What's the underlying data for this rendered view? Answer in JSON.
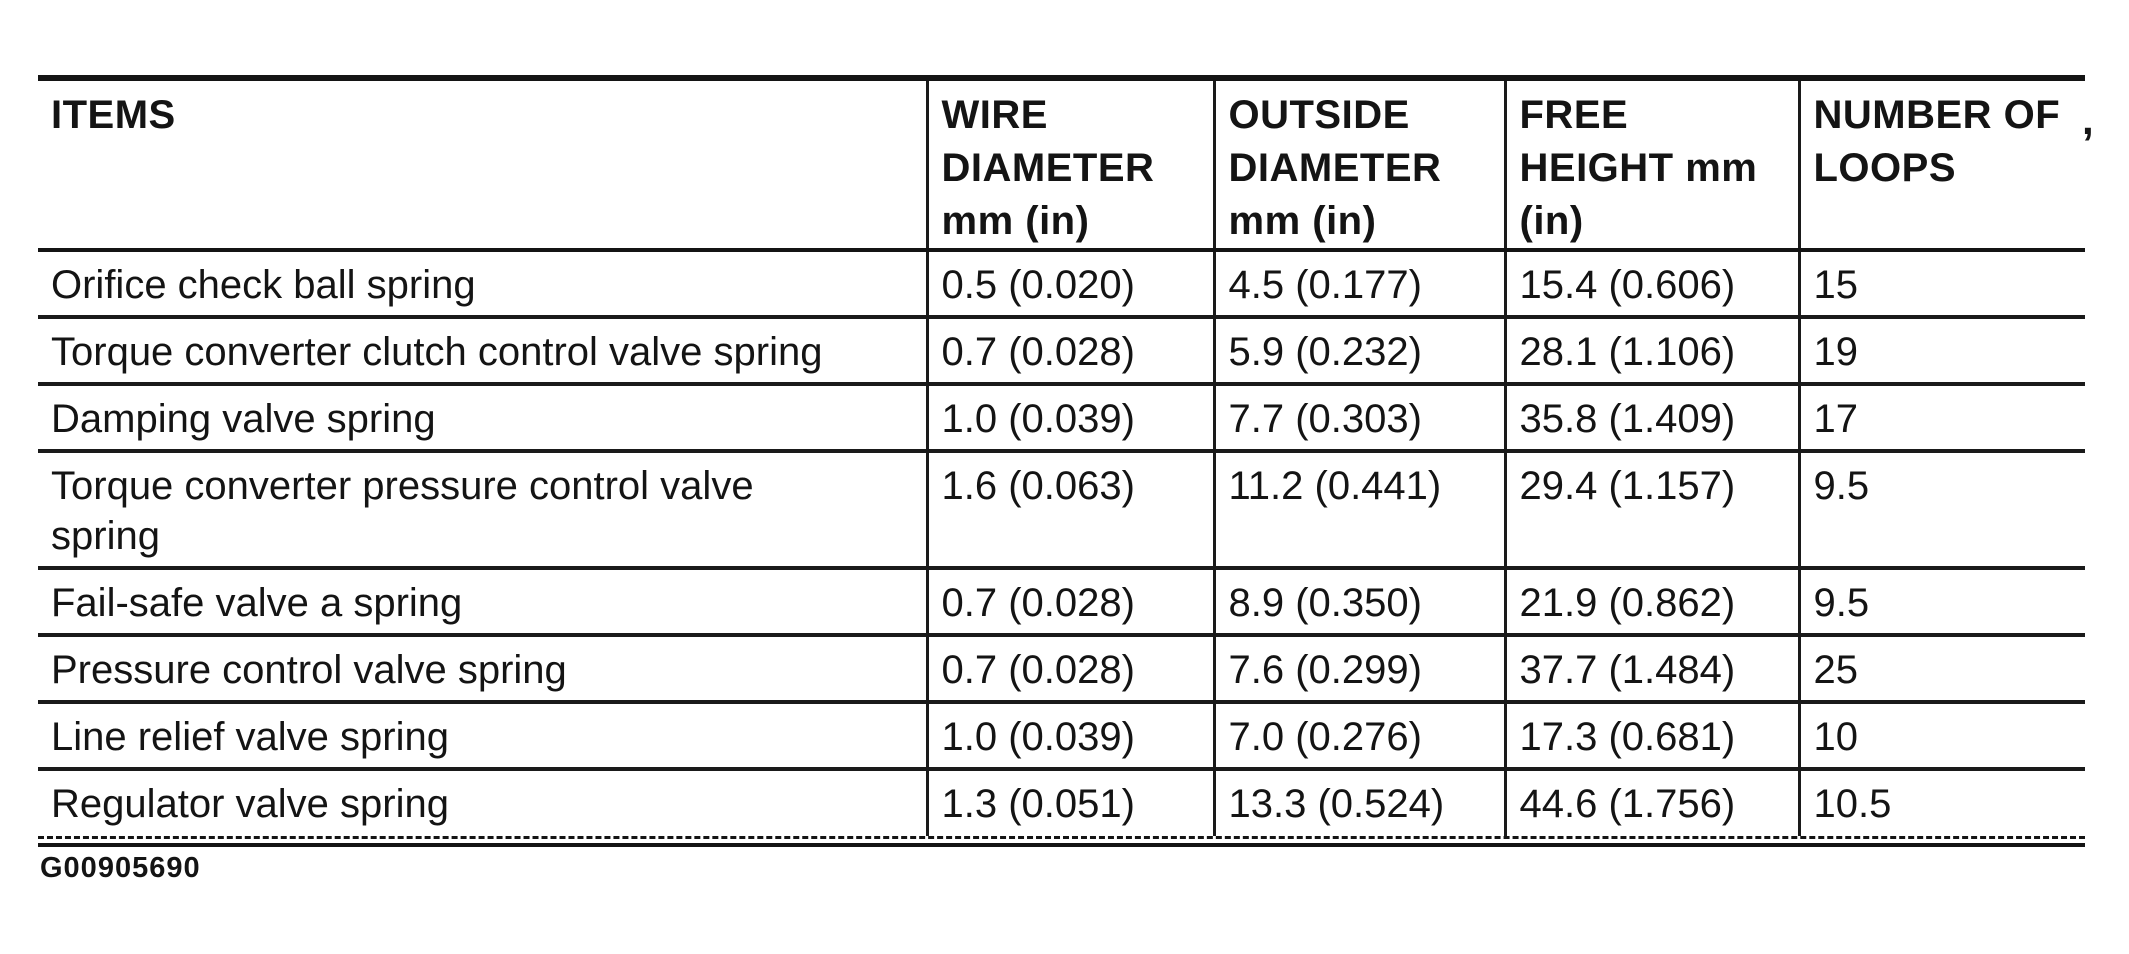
{
  "page": {
    "background": "#ffffff",
    "ink_color": "#141414",
    "figure_code": "G00905690",
    "artifact_mark": ","
  },
  "table": {
    "columns": [
      {
        "id": "items",
        "lines": [
          "ITEMS"
        ]
      },
      {
        "id": "wire_diameter",
        "lines": [
          "WIRE",
          "DIAMETER",
          "mm (in)"
        ]
      },
      {
        "id": "outside_diameter",
        "lines": [
          "OUTSIDE",
          "DIAMETER",
          "mm (in)"
        ]
      },
      {
        "id": "free_height",
        "lines": [
          "FREE",
          "HEIGHT mm",
          "(in)"
        ]
      },
      {
        "id": "number_of_loops",
        "lines": [
          "NUMBER OF",
          "LOOPS"
        ]
      }
    ],
    "rows": [
      {
        "item_lines": [
          "Orifice check ball spring"
        ],
        "wire_diameter": "0.5 (0.020)",
        "outside_diameter": "4.5 (0.177)",
        "free_height": "15.4 (0.606)",
        "number_of_loops": "15"
      },
      {
        "item_lines": [
          "Torque converter clutch control valve spring"
        ],
        "wire_diameter": "0.7 (0.028)",
        "outside_diameter": "5.9 (0.232)",
        "free_height": "28.1 (1.106)",
        "number_of_loops": "19"
      },
      {
        "item_lines": [
          "Damping valve spring"
        ],
        "wire_diameter": "1.0 (0.039)",
        "outside_diameter": "7.7 (0.303)",
        "free_height": "35.8 (1.409)",
        "number_of_loops": "17"
      },
      {
        "item_lines": [
          "Torque converter pressure control valve",
          "spring"
        ],
        "wire_diameter": "1.6 (0.063)",
        "outside_diameter": "11.2 (0.441)",
        "free_height": "29.4 (1.157)",
        "number_of_loops": "9.5"
      },
      {
        "item_lines": [
          "Fail-safe valve a spring"
        ],
        "wire_diameter": "0.7 (0.028)",
        "outside_diameter": "8.9 (0.350)",
        "free_height": "21.9 (0.862)",
        "number_of_loops": "9.5"
      },
      {
        "item_lines": [
          "Pressure control valve spring"
        ],
        "wire_diameter": "0.7 (0.028)",
        "outside_diameter": "7.6 (0.299)",
        "free_height": "37.7 (1.484)",
        "number_of_loops": "25"
      },
      {
        "item_lines": [
          "Line relief valve spring"
        ],
        "wire_diameter": "1.0 (0.039)",
        "outside_diameter": "7.0 (0.276)",
        "free_height": "17.3 (0.681)",
        "number_of_loops": "10"
      },
      {
        "item_lines": [
          "Regulator valve spring"
        ],
        "wire_diameter": "1.3 (0.051)",
        "outside_diameter": "13.3 (0.524)",
        "free_height": "44.6 (1.756)",
        "number_of_loops": "10.5"
      }
    ]
  }
}
